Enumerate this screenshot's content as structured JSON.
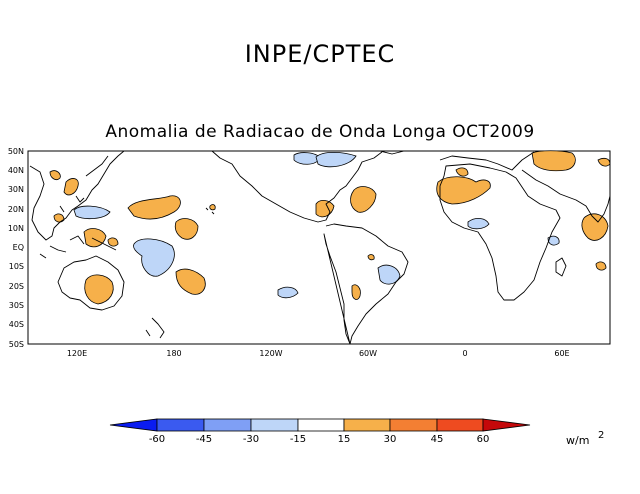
{
  "header": {
    "institution": "INPE/CPTEC",
    "title": "Anomalia de Radiacao de Onda Longa OCT2009"
  },
  "map": {
    "lat_labels": [
      "50N",
      "40N",
      "30N",
      "20N",
      "10N",
      "EQ",
      "10S",
      "20S",
      "30S",
      "40S",
      "50S"
    ],
    "lon_labels": [
      "120E",
      "180",
      "120W",
      "60W",
      "0",
      "60E"
    ]
  },
  "colorbar": {
    "ticks": [
      "-60",
      "-45",
      "-30",
      "-15",
      "15",
      "30",
      "45",
      "60"
    ],
    "unit_base": "w/m",
    "unit_exp": "2",
    "colors": [
      "#0a1cf0",
      "#3a5af0",
      "#7f9ff5",
      "#bed6f8",
      "#ffffff",
      "#f6b04a",
      "#f37f33",
      "#ee4b20",
      "#c4080a"
    ]
  }
}
